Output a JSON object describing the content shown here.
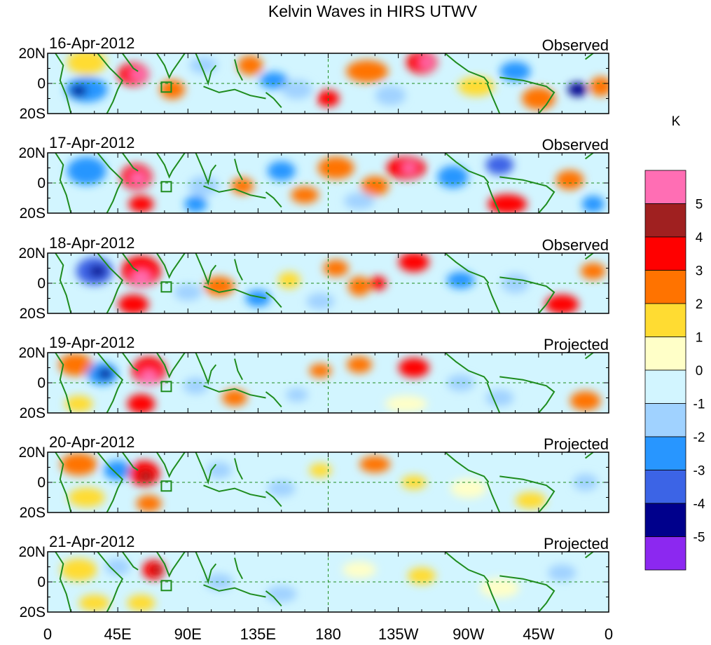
{
  "title": "Kelvin Waves in HIRS UTWV",
  "units": "K",
  "lat_labels": [
    "20N",
    "0",
    "20S"
  ],
  "lon_labels": [
    "0",
    "45E",
    "90E",
    "135E",
    "180",
    "135W",
    "90W",
    "45W",
    "0"
  ],
  "colorbar": {
    "labels": [
      "5",
      "4",
      "3",
      "2",
      "1",
      "0",
      "-1",
      "-2",
      "-3",
      "-4",
      "-5"
    ],
    "colors": [
      "#ff6eb4",
      "#a02020",
      "#ff0000",
      "#ff7300",
      "#ffdc32",
      "#ffffc8",
      "#d2f5ff",
      "#a0d2ff",
      "#2896ff",
      "#3c64e6",
      "#00008c",
      "#8c28f0"
    ]
  },
  "panels": [
    {
      "date": "16-Apr-2012",
      "type": "Observed"
    },
    {
      "date": "17-Apr-2012",
      "type": "Observed"
    },
    {
      "date": "18-Apr-2012",
      "type": "Observed"
    },
    {
      "date": "19-Apr-2012",
      "type": "Projected"
    },
    {
      "date": "20-Apr-2012",
      "type": "Projected"
    },
    {
      "date": "21-Apr-2012",
      "type": "Projected"
    }
  ],
  "anomaly_colors": {
    "pos5": "#ff6eb4",
    "pos4": "#a02020",
    "pos3": "#ff0000",
    "pos2": "#ff7300",
    "pos1": "#ffdc32",
    "neg1": "#a0d2ff",
    "neg2": "#2896ff",
    "neg3": "#3c64e6",
    "neg4": "#00008c",
    "neg5": "#8c28f0",
    "neutral_pos": "#ffffc8",
    "neutral_neg": "#d2f5ff",
    "coastline": "#1e8c1e"
  }
}
